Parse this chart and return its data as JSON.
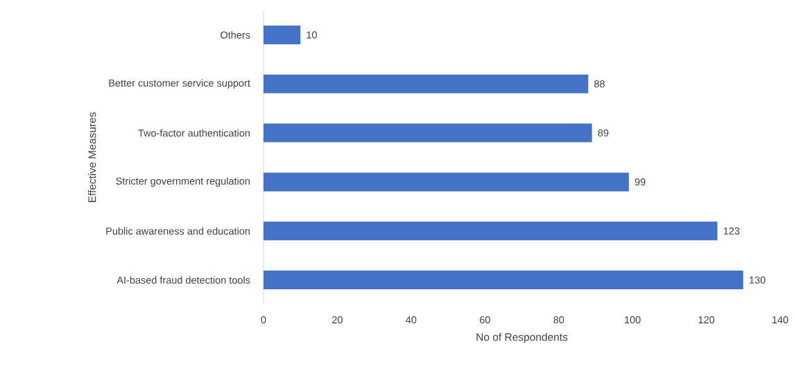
{
  "chart_data": {
    "type": "bar",
    "orientation": "horizontal",
    "xlabel": "No of Respondents",
    "ylabel": "Effective Measures",
    "categories": [
      "Others",
      "Better customer service support",
      "Two-factor authentication",
      "Stricter government regulation",
      "Public awareness and education",
      "AI-based fraud detection tools"
    ],
    "values": [
      10,
      88,
      89,
      99,
      123,
      130
    ],
    "color": "#4472c4",
    "xlim": [
      0,
      140
    ],
    "xticks": [
      0,
      20,
      40,
      60,
      80,
      100,
      120,
      140
    ],
    "data_labels": true,
    "grid": false
  }
}
